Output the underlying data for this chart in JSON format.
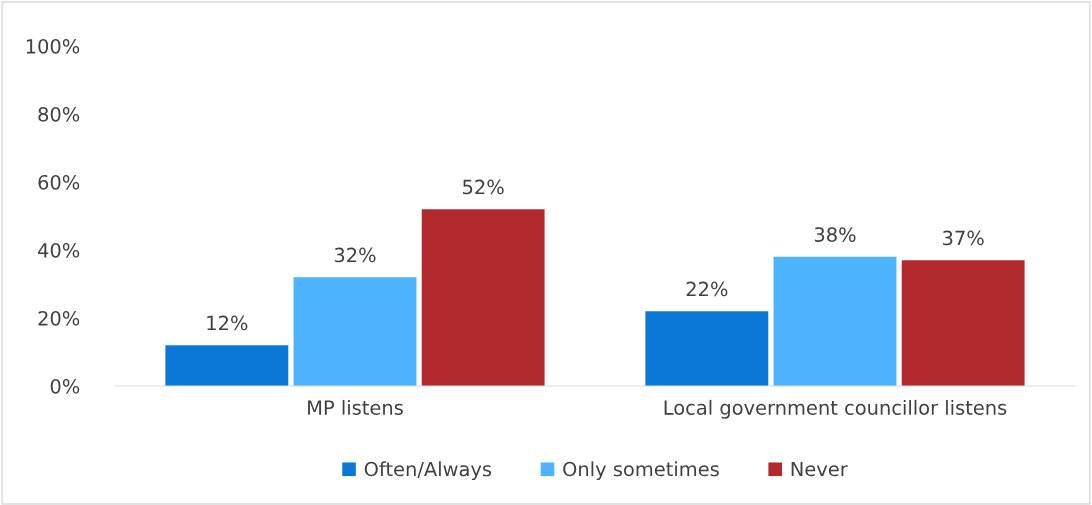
{
  "chart_data": {
    "type": "bar",
    "categories": [
      "MP listens",
      "Local government councillor listens"
    ],
    "series": [
      {
        "name": "Often/Always",
        "color": "#0b78d8",
        "values": [
          12,
          22
        ],
        "value_labels": [
          "12%",
          "22%"
        ]
      },
      {
        "name": "Only sometimes",
        "color": "#4db3ff",
        "values": [
          32,
          38
        ],
        "value_labels": [
          "32%",
          "38%"
        ]
      },
      {
        "name": "Never",
        "color": "#b22a2e",
        "values": [
          52,
          37
        ],
        "value_labels": [
          "52%",
          "37%"
        ]
      }
    ],
    "ylim": [
      0,
      100
    ],
    "yticks": [
      {
        "value": 0,
        "label": "0%"
      },
      {
        "value": 20,
        "label": "20%"
      },
      {
        "value": 40,
        "label": "40%"
      },
      {
        "value": 60,
        "label": "60%"
      },
      {
        "value": 80,
        "label": "80%"
      },
      {
        "value": 100,
        "label": "100%"
      }
    ],
    "grid": false,
    "legend": "bottom"
  }
}
